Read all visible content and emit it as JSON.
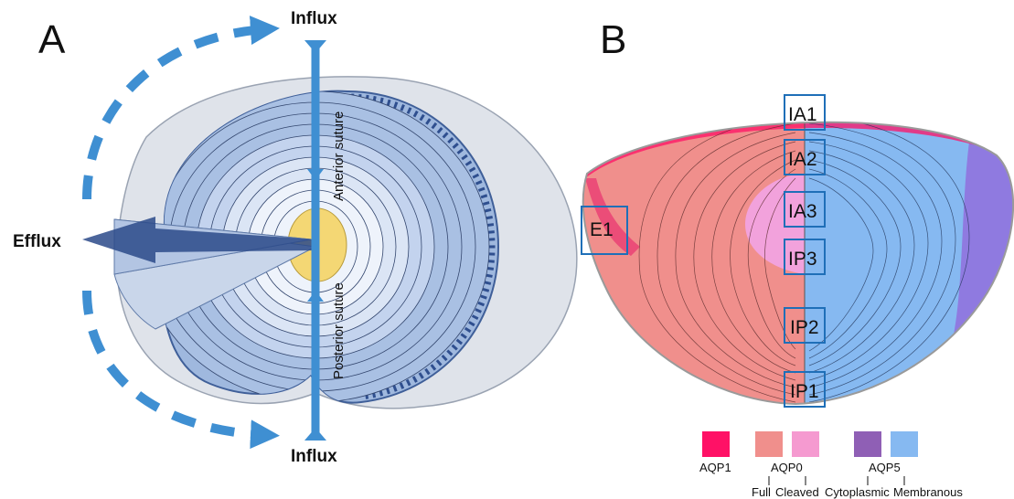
{
  "panels": {
    "a": "A",
    "b": "B"
  },
  "panel_a": {
    "influx_top": "Influx",
    "influx_bottom": "Influx",
    "efflux": "Efflux",
    "anterior_suture": "Anterior suture",
    "posterior_suture": "Posterior suture"
  },
  "panel_b": {
    "zones": [
      "IA1",
      "IA2",
      "IA3",
      "IP3",
      "IP2",
      "IP1",
      "E1"
    ],
    "legend": {
      "aqp1": "AQP1",
      "aqp0": "AQP0",
      "aqp5": "AQP5",
      "full": "Full",
      "cleaved": "Cleaved",
      "cytoplasmic": "Cytoplasmic",
      "membranous": "Membranous"
    }
  },
  "colors": {
    "aqp1": "#ff1166",
    "aqp0_full": "#f08f8c",
    "aqp0_cleaved": "#f59ad0",
    "aqp5_cytoplasmic": "#8f5fb5",
    "aqp5_membranous": "#86b9f1",
    "flux_arrow": "#3f8fd2",
    "efflux_arrow": "#2b4a8a"
  }
}
